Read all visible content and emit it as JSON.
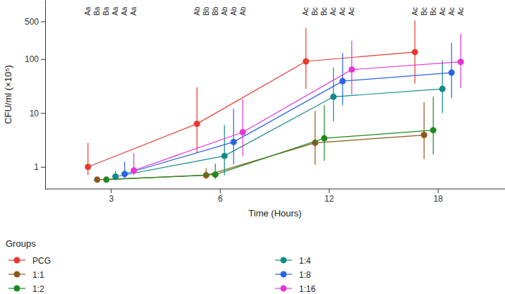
{
  "chart_data": {
    "type": "line",
    "x_label": "Time (Hours)",
    "y_label": "CFU/ml (×10⁵)",
    "legend_title": "Groups",
    "categories": [
      "3",
      "6",
      "12",
      "18"
    ],
    "log": "y",
    "ylim": [
      0.39,
      1250
    ],
    "yticks": [
      1,
      10,
      100,
      500
    ],
    "grid": false,
    "legend": "bottom",
    "marker": "circle",
    "series": [
      {
        "name": "PCG",
        "color": "#e8392e",
        "values": [
          1.0,
          6.3,
          91,
          135
        ],
        "lower": [
          0.7,
          1.8,
          28,
          35
        ],
        "upper": [
          2.8,
          30,
          380,
          520
        ],
        "letters": [
          "Aa",
          "Ab",
          "Ac",
          "Ac"
        ]
      },
      {
        "name": "1:1",
        "color": "#8b5a1a",
        "values": [
          0.58,
          0.7,
          2.8,
          3.9
        ],
        "lower": [
          0.56,
          0.6,
          1.1,
          1.4
        ],
        "upper": [
          0.6,
          0.95,
          11,
          16
        ],
        "letters": [
          "Ba",
          "Bb",
          "Bc",
          "Bc"
        ]
      },
      {
        "name": "1:2",
        "color": "#1e8a1e",
        "values": [
          0.58,
          0.72,
          3.4,
          4.8
        ],
        "lower": [
          0.56,
          0.6,
          1.3,
          1.7
        ],
        "upper": [
          0.6,
          1.15,
          14,
          20
        ],
        "letters": [
          "Ba",
          "Bb",
          "Bc",
          "Bc"
        ]
      },
      {
        "name": "1:4",
        "color": "#138a8a",
        "values": [
          0.66,
          1.6,
          20,
          28
        ],
        "lower": [
          0.56,
          0.7,
          7,
          10
        ],
        "upper": [
          0.85,
          6,
          70,
          95
        ],
        "letters": [
          "Aa",
          "Ab",
          "Ac",
          "Ac"
        ]
      },
      {
        "name": "1:8",
        "color": "#2a63e0",
        "values": [
          0.74,
          2.9,
          39,
          56
        ],
        "lower": [
          0.6,
          1.1,
          14,
          19
        ],
        "upper": [
          1.25,
          12,
          130,
          200
        ],
        "letters": [
          "Aa",
          "Ab",
          "Ac",
          "Ac"
        ]
      },
      {
        "name": "1:16",
        "color": "#e635d6",
        "values": [
          0.86,
          4.4,
          64,
          89
        ],
        "lower": [
          0.7,
          1.6,
          22,
          29
        ],
        "upper": [
          1.8,
          18,
          220,
          300
        ],
        "letters": [
          "Aa",
          "Ab",
          "Ac",
          "Ac"
        ]
      }
    ]
  }
}
